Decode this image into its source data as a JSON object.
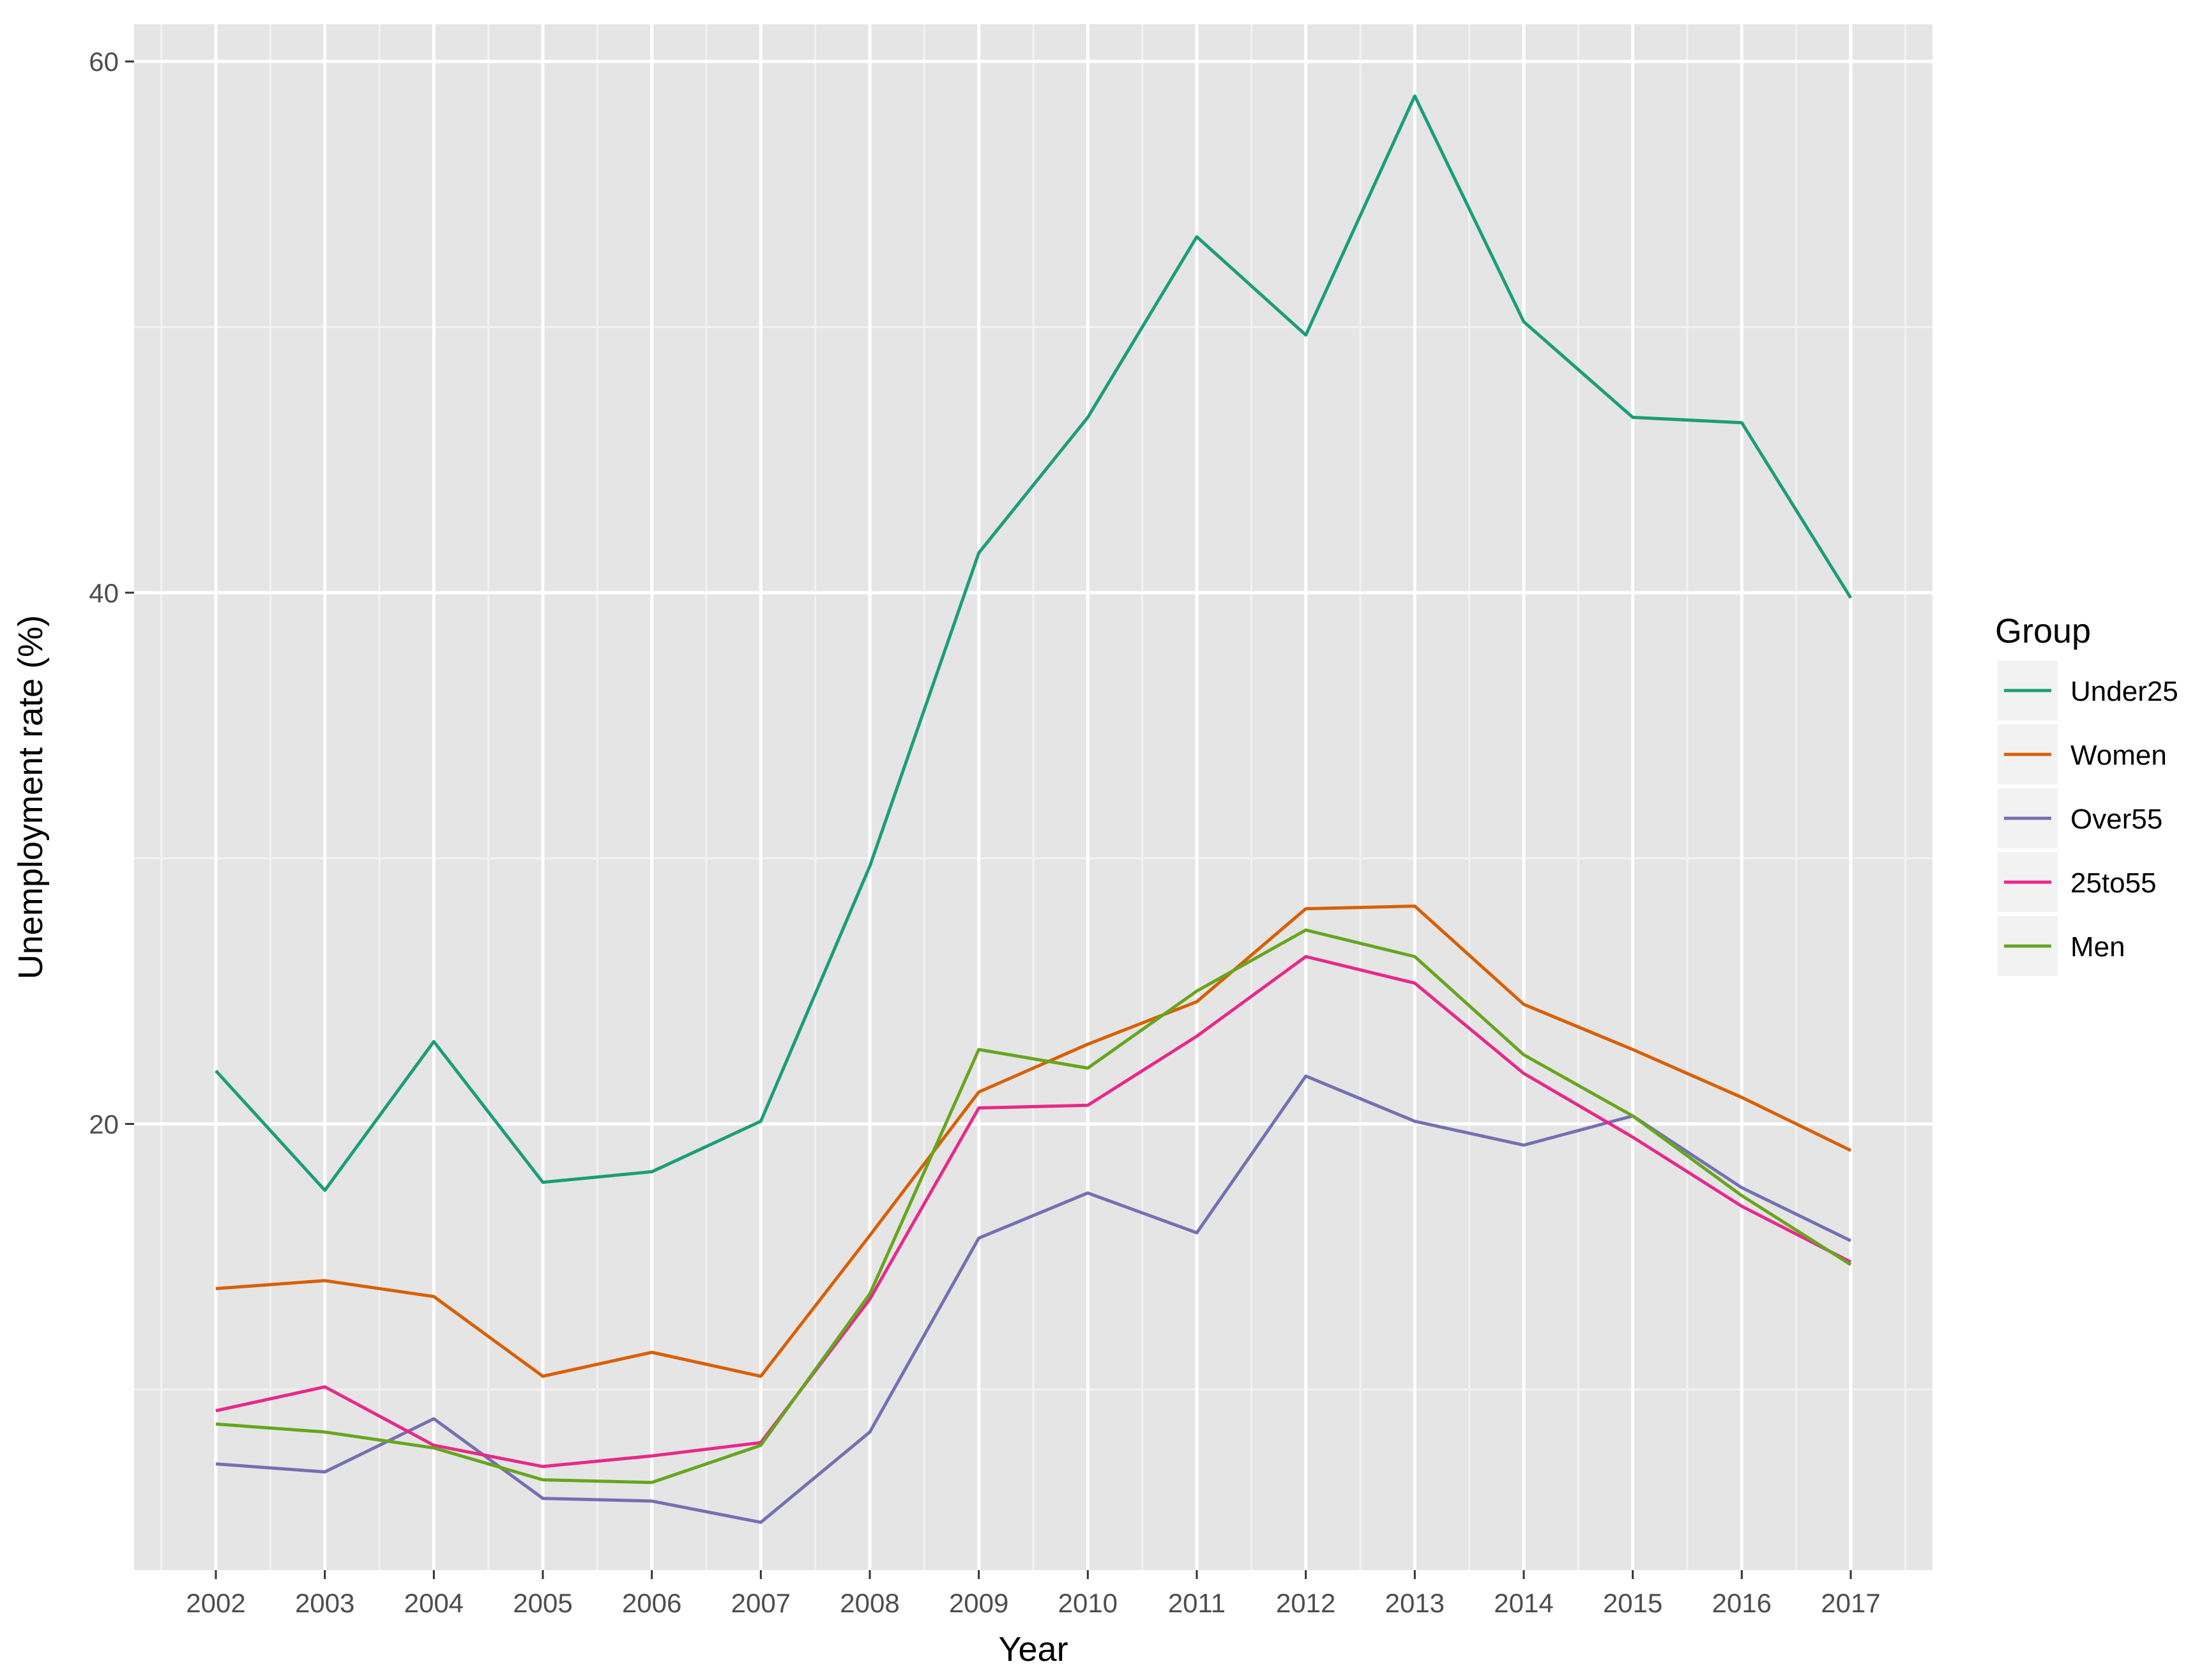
{
  "chart_data": {
    "type": "line",
    "title": "",
    "xlabel": "Year",
    "ylabel": "Unemployment rate (%)",
    "x": [
      2002,
      2003,
      2004,
      2005,
      2006,
      2007,
      2008,
      2009,
      2010,
      2011,
      2012,
      2013,
      2014,
      2015,
      2016,
      2017
    ],
    "xlim": [
      2001.25,
      2017.75
    ],
    "ylim": [
      3.2,
      61.4
    ],
    "yticks": [
      20,
      40,
      60
    ],
    "grid": true,
    "background": "#e5e5e5",
    "legend": {
      "title": "Group",
      "placement": "right"
    },
    "series": [
      {
        "name": "Under25",
        "color": "#1b9e77",
        "values": [
          22.0,
          17.5,
          23.1,
          17.8,
          18.2,
          20.1,
          29.7,
          41.5,
          46.6,
          53.4,
          49.7,
          58.7,
          50.2,
          46.6,
          46.4,
          39.8
        ]
      },
      {
        "name": "Women",
        "color": "#d95f02",
        "values": [
          13.8,
          14.1,
          13.5,
          10.5,
          11.4,
          10.5,
          15.8,
          21.2,
          23.0,
          24.6,
          28.1,
          28.2,
          24.5,
          22.8,
          21.0,
          19.0
        ]
      },
      {
        "name": "Over55",
        "color": "#7570b3",
        "values": [
          7.2,
          6.9,
          8.9,
          5.9,
          5.8,
          5.0,
          8.4,
          15.7,
          17.4,
          15.9,
          21.8,
          20.1,
          19.2,
          20.3,
          17.6,
          15.6
        ]
      },
      {
        "name": "25to55",
        "color": "#e7298a",
        "values": [
          9.2,
          10.1,
          7.9,
          7.1,
          7.5,
          8.0,
          13.4,
          20.6,
          20.7,
          23.3,
          26.3,
          25.3,
          21.9,
          19.5,
          16.9,
          14.8
        ]
      },
      {
        "name": "Men",
        "color": "#66a61e",
        "values": [
          8.7,
          8.4,
          7.8,
          6.6,
          6.5,
          7.9,
          13.6,
          22.8,
          22.1,
          25.0,
          27.3,
          26.3,
          22.6,
          20.3,
          17.3,
          14.7
        ]
      }
    ]
  }
}
